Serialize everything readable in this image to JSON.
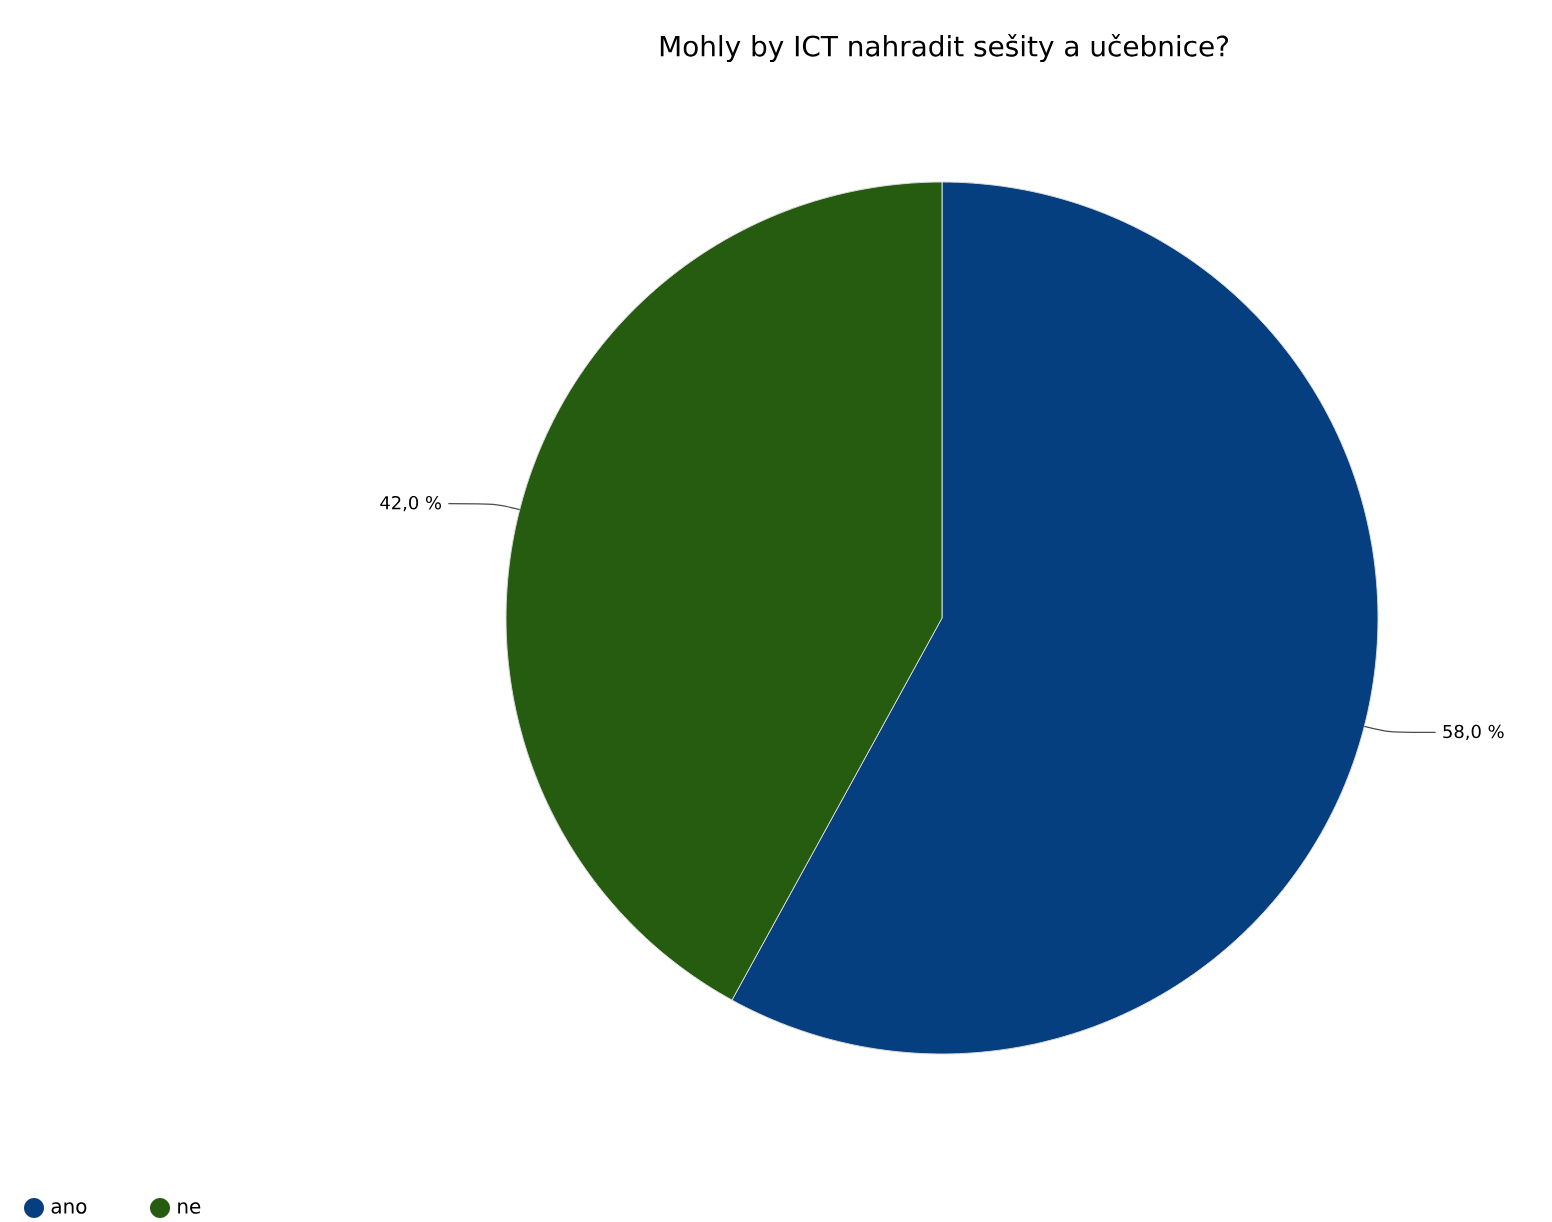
{
  "chart_data": {
    "type": "pie",
    "title": "Mohly by ICT nahradit sešity a učebnice?",
    "categories": [
      "ano",
      "ne"
    ],
    "values": [
      58,
      42
    ],
    "colors": [
      "#063f7f",
      "#265c10"
    ],
    "value_labels": [
      "58,0 %",
      "42,0 %"
    ],
    "legend": "bottom left"
  }
}
